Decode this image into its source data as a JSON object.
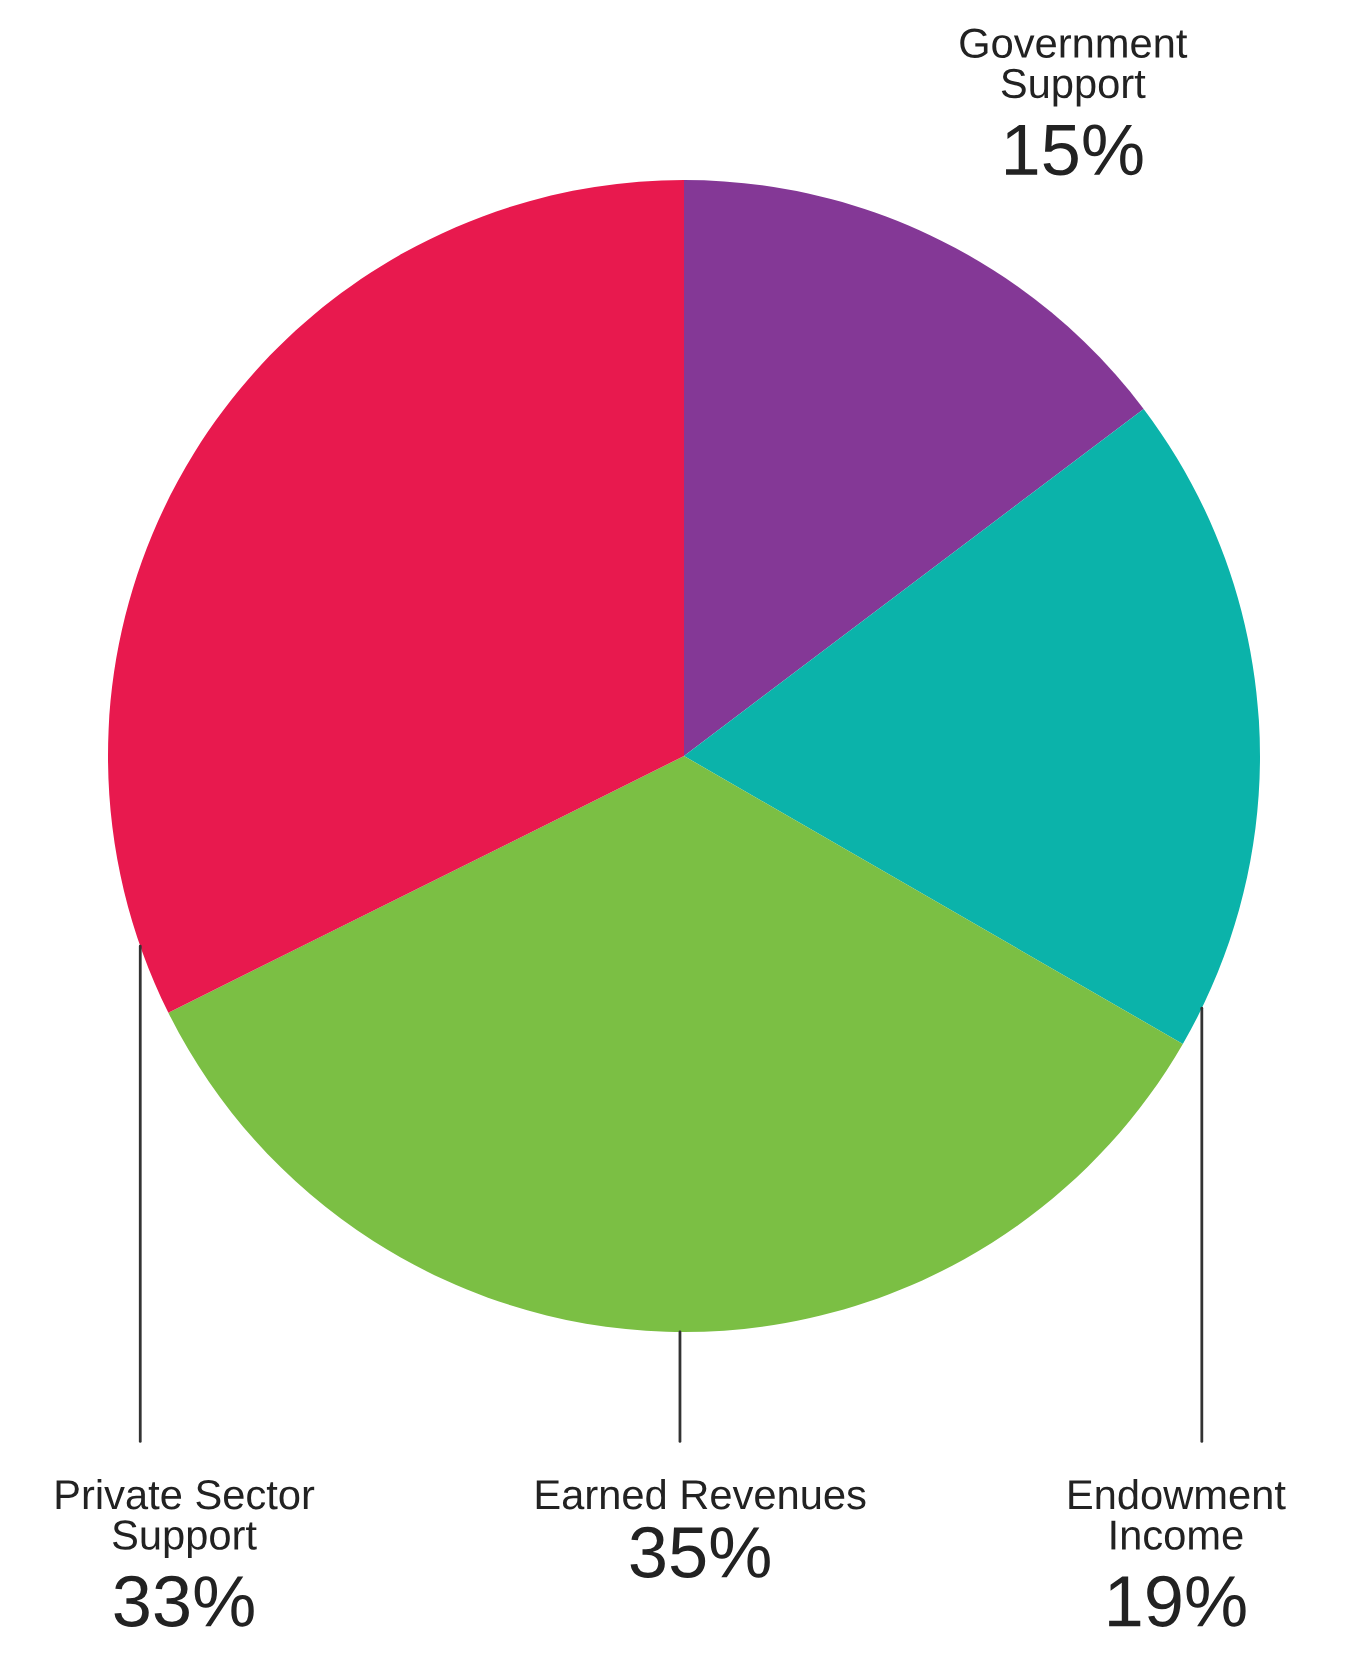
{
  "chart_data": {
    "type": "pie",
    "categories": [
      "Government\nSupport",
      "Endowment\nIncome",
      "Earned Revenues",
      "Private Sector\nSupport"
    ],
    "values": [
      15,
      19,
      35,
      33
    ],
    "value_labels": [
      "15%",
      "19%",
      "35%",
      "33%"
    ],
    "colors": [
      "#843896",
      "#0bb3aa",
      "#7bbf44",
      "#e8194e"
    ]
  }
}
